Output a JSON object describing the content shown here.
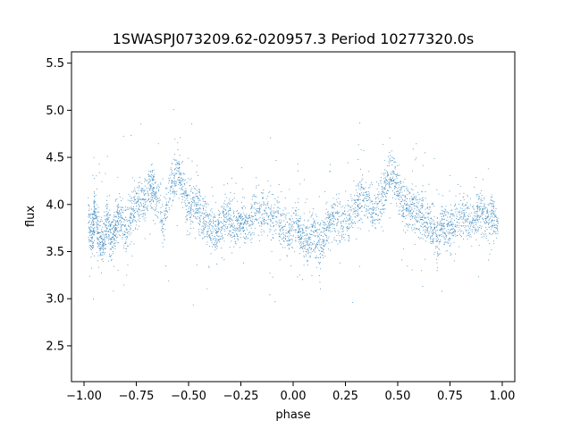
{
  "chart_data": {
    "type": "scatter",
    "title": "1SWASPJ073209.62-020957.3 Period 10277320.0s",
    "xlabel": "phase",
    "ylabel": "flux",
    "xlim": [
      -1.06,
      1.06
    ],
    "ylim": [
      2.12,
      5.62
    ],
    "x_ticks": [
      -1.0,
      -0.75,
      -0.5,
      -0.25,
      0.0,
      0.25,
      0.5,
      0.75,
      1.0
    ],
    "x_tick_labels": [
      "−1.00",
      "−0.75",
      "−0.50",
      "−0.25",
      "0.00",
      "0.25",
      "0.50",
      "0.75",
      "1.00"
    ],
    "y_ticks": [
      2.5,
      3.0,
      3.5,
      4.0,
      4.5,
      5.0,
      5.5
    ],
    "y_tick_labels": [
      "2.5",
      "3.0",
      "3.5",
      "4.0",
      "4.5",
      "5.0",
      "5.5"
    ],
    "grid": false,
    "marker_color": "#1f77b4",
    "series": [
      {
        "description_source": "phase-folded light curve, repeated over two cycles (phase -1 to 1)",
        "points": [
          [
            -0.98,
            3.8
          ],
          [
            -0.96,
            3.65
          ],
          [
            -0.95,
            3.95
          ],
          [
            -0.93,
            3.7
          ],
          [
            -0.91,
            3.55
          ],
          [
            -0.89,
            3.85
          ],
          [
            -0.87,
            3.6
          ],
          [
            -0.85,
            3.75
          ],
          [
            -0.83,
            3.9
          ],
          [
            -0.8,
            3.7
          ],
          [
            -0.77,
            3.95
          ],
          [
            -0.74,
            4.0
          ],
          [
            -0.71,
            4.05
          ],
          [
            -0.68,
            4.2
          ],
          [
            -0.66,
            4.1
          ],
          [
            -0.62,
            3.85
          ],
          [
            -0.58,
            4.25
          ],
          [
            -0.55,
            4.35
          ],
          [
            -0.52,
            4.1
          ],
          [
            -0.49,
            3.95
          ],
          [
            -0.46,
            4.0
          ],
          [
            -0.43,
            3.85
          ],
          [
            -0.4,
            3.75
          ],
          [
            -0.37,
            3.7
          ],
          [
            -0.34,
            3.8
          ],
          [
            -0.31,
            3.9
          ],
          [
            -0.28,
            3.75
          ],
          [
            -0.25,
            3.85
          ],
          [
            -0.22,
            3.8
          ],
          [
            -0.18,
            3.95
          ],
          [
            -0.14,
            3.9
          ],
          [
            -0.1,
            3.85
          ],
          [
            -0.06,
            3.8
          ],
          [
            -0.02,
            3.7
          ],
          [
            0.02,
            3.8
          ],
          [
            0.04,
            3.65
          ],
          [
            0.07,
            3.6
          ],
          [
            0.1,
            3.7
          ],
          [
            0.13,
            3.55
          ],
          [
            0.16,
            3.75
          ],
          [
            0.19,
            3.9
          ],
          [
            0.23,
            3.8
          ],
          [
            0.27,
            3.85
          ],
          [
            0.31,
            4.0
          ],
          [
            0.34,
            4.1
          ],
          [
            0.38,
            3.95
          ],
          [
            0.42,
            4.05
          ],
          [
            0.45,
            4.25
          ],
          [
            0.48,
            4.35
          ],
          [
            0.51,
            4.1
          ],
          [
            0.54,
            3.95
          ],
          [
            0.57,
            4.0
          ],
          [
            0.6,
            3.9
          ],
          [
            0.63,
            3.85
          ],
          [
            0.66,
            3.75
          ],
          [
            0.69,
            3.65
          ],
          [
            0.72,
            3.8
          ],
          [
            0.75,
            3.7
          ],
          [
            0.78,
            3.85
          ],
          [
            0.82,
            3.9
          ],
          [
            0.86,
            3.8
          ],
          [
            0.89,
            3.95
          ],
          [
            0.92,
            3.85
          ],
          [
            0.95,
            3.9
          ],
          [
            0.98,
            3.8
          ]
        ]
      }
    ]
  }
}
